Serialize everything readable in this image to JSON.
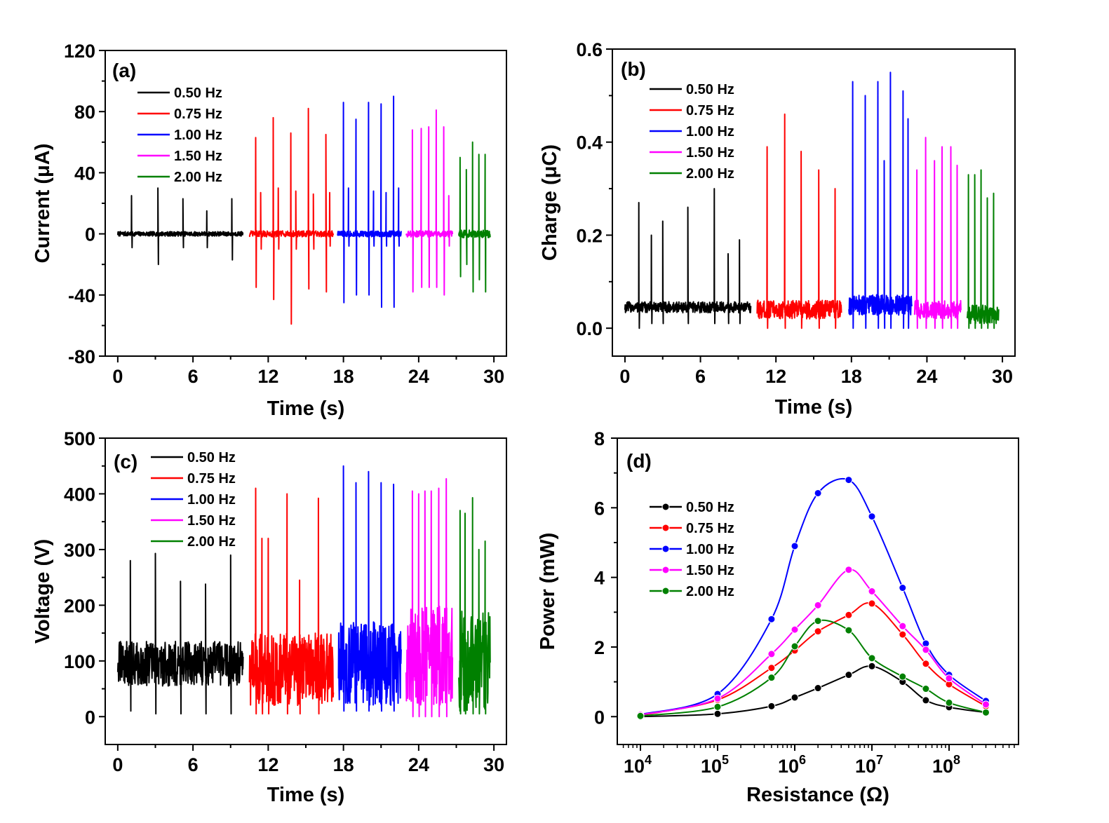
{
  "colors": {
    "0.50 Hz": "#000000",
    "0.75 Hz": "#ff0000",
    "1.00 Hz": "#0000ff",
    "1.50 Hz": "#ff00ff",
    "2.00 Hz": "#008000"
  },
  "chart_data": [
    {
      "type": "line",
      "panel": "(a)",
      "xlabel": "Time (s)",
      "ylabel": "Current (μA)",
      "xlim": [
        -1,
        31
      ],
      "ylim": [
        -80,
        120
      ],
      "xticks": [
        0,
        6,
        12,
        18,
        24,
        30
      ],
      "yticks": [
        -80,
        -40,
        0,
        40,
        80,
        120
      ],
      "legend": [
        "0.50 Hz",
        "0.75 Hz",
        "1.00 Hz",
        "1.50 Hz",
        "2.00 Hz"
      ],
      "series": [
        {
          "name": "0.50 Hz",
          "t_range": [
            0.0,
            10.0
          ],
          "noise": 1.5,
          "baseline": 0,
          "peaks": [
            [
              1.1,
              25,
              -9
            ],
            [
              3.2,
              30,
              -20
            ],
            [
              5.2,
              23,
              -9
            ],
            [
              7.1,
              15,
              -9
            ],
            [
              9.1,
              23,
              -17
            ]
          ]
        },
        {
          "name": "0.75 Hz",
          "t_range": [
            10.5,
            17.2
          ],
          "noise": 2,
          "baseline": 0,
          "peaks": [
            [
              11.0,
              63,
              -35
            ],
            [
              11.4,
              27,
              -10
            ],
            [
              12.4,
              76,
              -43
            ],
            [
              12.8,
              30,
              -10
            ],
            [
              13.8,
              66,
              -59
            ],
            [
              14.2,
              28,
              -10
            ],
            [
              15.2,
              82,
              -36
            ],
            [
              15.6,
              26,
              -10
            ],
            [
              16.6,
              65,
              -38
            ],
            [
              16.9,
              27,
              -8
            ]
          ]
        },
        {
          "name": "1.00 Hz",
          "t_range": [
            17.5,
            22.6
          ],
          "noise": 2,
          "baseline": 0,
          "peaks": [
            [
              18.0,
              86,
              -45
            ],
            [
              18.4,
              30,
              -8
            ],
            [
              19.0,
              75,
              -40
            ],
            [
              20.0,
              86,
              -40
            ],
            [
              20.4,
              28,
              -8
            ],
            [
              21.0,
              85,
              -48
            ],
            [
              21.4,
              27,
              -8
            ],
            [
              22.0,
              90,
              -48
            ],
            [
              22.4,
              30,
              -8
            ]
          ]
        },
        {
          "name": "1.50 Hz",
          "t_range": [
            23.0,
            26.7
          ],
          "noise": 2,
          "baseline": 0,
          "peaks": [
            [
              23.5,
              68,
              -38
            ],
            [
              24.2,
              69,
              -35
            ],
            [
              24.8,
              70,
              -35
            ],
            [
              25.4,
              81,
              -35
            ],
            [
              26.0,
              70,
              -40
            ],
            [
              26.4,
              25,
              -8
            ]
          ]
        },
        {
          "name": "2.00 Hz",
          "t_range": [
            27.2,
            29.7
          ],
          "noise": 2.5,
          "baseline": 0,
          "peaks": [
            [
              27.3,
              50,
              -28
            ],
            [
              27.8,
              42,
              -20
            ],
            [
              28.3,
              60,
              -38
            ],
            [
              28.8,
              52,
              -30
            ],
            [
              29.3,
              52,
              -38
            ]
          ]
        }
      ]
    },
    {
      "type": "line",
      "panel": "(b)",
      "xlabel": "Time (s)",
      "ylabel": "Charge (μC)",
      "xlim": [
        -1,
        31
      ],
      "ylim": [
        -0.06,
        0.6
      ],
      "xticks": [
        0,
        6,
        12,
        18,
        24,
        30
      ],
      "yticks": [
        0.0,
        0.2,
        0.4,
        0.6
      ],
      "legend": [
        "0.50 Hz",
        "0.75 Hz",
        "1.00 Hz",
        "1.50 Hz",
        "2.00 Hz"
      ],
      "series": [
        {
          "name": "0.50 Hz",
          "t_range": [
            0.0,
            10.0
          ],
          "noise": 0.012,
          "baseline": 0.045,
          "peaks": [
            [
              1.1,
              0.27,
              0.0
            ],
            [
              2.1,
              0.2,
              0.01
            ],
            [
              3.0,
              0.23,
              0.01
            ],
            [
              5.0,
              0.26,
              0.01
            ],
            [
              7.1,
              0.3,
              0.01
            ],
            [
              8.2,
              0.16,
              0.01
            ],
            [
              9.1,
              0.19,
              0.01
            ]
          ]
        },
        {
          "name": "0.75 Hz",
          "t_range": [
            10.5,
            17.2
          ],
          "noise": 0.02,
          "baseline": 0.04,
          "peaks": [
            [
              11.3,
              0.39,
              0.0
            ],
            [
              12.7,
              0.46,
              0.0
            ],
            [
              14.0,
              0.38,
              0.0
            ],
            [
              15.4,
              0.34,
              0.0
            ],
            [
              16.7,
              0.3,
              0.0
            ]
          ]
        },
        {
          "name": "1.00 Hz",
          "t_range": [
            17.8,
            22.8
          ],
          "noise": 0.022,
          "baseline": 0.05,
          "peaks": [
            [
              18.1,
              0.53,
              0.0
            ],
            [
              19.1,
              0.5,
              0.0
            ],
            [
              20.1,
              0.53,
              0.0
            ],
            [
              20.6,
              0.36,
              0.0
            ],
            [
              21.1,
              0.55,
              0.0
            ],
            [
              22.1,
              0.51,
              0.0
            ],
            [
              22.5,
              0.45,
              0.0
            ]
          ]
        },
        {
          "name": "1.50 Hz",
          "t_range": [
            23.0,
            26.7
          ],
          "noise": 0.02,
          "baseline": 0.04,
          "peaks": [
            [
              23.2,
              0.34,
              0.0
            ],
            [
              23.9,
              0.41,
              0.0
            ],
            [
              24.6,
              0.36,
              0.0
            ],
            [
              25.2,
              0.39,
              0.0
            ],
            [
              25.9,
              0.39,
              0.0
            ],
            [
              26.4,
              0.35,
              0.0
            ]
          ]
        },
        {
          "name": "2.00 Hz",
          "t_range": [
            27.2,
            29.7
          ],
          "noise": 0.02,
          "baseline": 0.03,
          "peaks": [
            [
              27.3,
              0.33,
              0.0
            ],
            [
              27.8,
              0.33,
              0.0
            ],
            [
              28.3,
              0.34,
              0.0
            ],
            [
              28.8,
              0.28,
              0.0
            ],
            [
              29.3,
              0.29,
              0.0
            ]
          ]
        }
      ]
    },
    {
      "type": "line",
      "panel": "(c)",
      "xlabel": "Time (s)",
      "ylabel": "Voltage (V)",
      "xlim": [
        -1,
        31
      ],
      "ylim": [
        -50,
        500
      ],
      "xticks": [
        0,
        6,
        12,
        18,
        24,
        30
      ],
      "yticks": [
        0,
        100,
        200,
        300,
        400,
        500
      ],
      "legend": [
        "0.50 Hz",
        "0.75 Hz",
        "1.00 Hz",
        "1.50 Hz",
        "2.00 Hz"
      ],
      "series": [
        {
          "name": "0.50 Hz",
          "t_range": [
            0.0,
            10.0
          ],
          "noise": 40,
          "baseline": 95,
          "peaks": [
            [
              1.0,
              280,
              10
            ],
            [
              3.0,
              293,
              5
            ],
            [
              5.0,
              243,
              5
            ],
            [
              7.0,
              238,
              5
            ],
            [
              9.0,
              290,
              5
            ]
          ]
        },
        {
          "name": "0.75 Hz",
          "t_range": [
            10.5,
            17.2
          ],
          "noise": 65,
          "baseline": 85,
          "peaks": [
            [
              11.0,
              410,
              5
            ],
            [
              11.5,
              320,
              5
            ],
            [
              12.0,
              320,
              5
            ],
            [
              13.5,
              400,
              5
            ],
            [
              14.5,
              245,
              5
            ],
            [
              16.0,
              392,
              5
            ]
          ]
        },
        {
          "name": "1.00 Hz",
          "t_range": [
            17.6,
            22.6
          ],
          "noise": 75,
          "baseline": 95,
          "peaks": [
            [
              18.0,
              450,
              10
            ],
            [
              19.0,
              420,
              10
            ],
            [
              20.0,
              440,
              10
            ],
            [
              21.0,
              420,
              10
            ],
            [
              22.0,
              417,
              10
            ]
          ]
        },
        {
          "name": "1.50 Hz",
          "t_range": [
            23.0,
            26.7
          ],
          "noise": 90,
          "baseline": 110,
          "peaks": [
            [
              23.5,
              405,
              0
            ],
            [
              24.0,
              400,
              0
            ],
            [
              24.5,
              405,
              0
            ],
            [
              25.0,
              405,
              0
            ],
            [
              25.6,
              410,
              0
            ],
            [
              26.2,
              427,
              0
            ]
          ]
        },
        {
          "name": "2.00 Hz",
          "t_range": [
            27.2,
            29.7
          ],
          "noise": 90,
          "baseline": 100,
          "peaks": [
            [
              27.3,
              370,
              5
            ],
            [
              27.7,
              365,
              5
            ],
            [
              28.3,
              393,
              5
            ],
            [
              28.8,
              300,
              5
            ],
            [
              29.3,
              315,
              5
            ]
          ]
        }
      ]
    },
    {
      "type": "line",
      "panel": "(d)",
      "xlabel": "Resistance (Ω)",
      "ylabel": "Power (mW)",
      "xscale": "log",
      "xlim_log10": [
        3.7,
        8.9
      ],
      "ylim": [
        -0.8,
        8
      ],
      "xticks_log10": [
        4,
        5,
        6,
        7,
        8
      ],
      "xtick_labels": [
        [
          "10",
          "4"
        ],
        [
          "10",
          "5"
        ],
        [
          "10",
          "6"
        ],
        [
          "10",
          "7"
        ],
        [
          "10",
          "8"
        ]
      ],
      "yticks": [
        0,
        2,
        4,
        6,
        8
      ],
      "legend": [
        "0.50 Hz",
        "0.75 Hz",
        "1.00 Hz",
        "1.50 Hz",
        "2.00 Hz"
      ],
      "x": [
        10000,
        100000,
        500000,
        1000000,
        2000000,
        5000000,
        10000000,
        25000000,
        50000000,
        100000000,
        300000000
      ],
      "series": [
        {
          "name": "0.50 Hz",
          "values": [
            0.0,
            0.08,
            0.3,
            0.55,
            0.82,
            1.2,
            1.45,
            1.0,
            0.47,
            0.27,
            0.12
          ]
        },
        {
          "name": "0.75 Hz",
          "values": [
            0.04,
            0.48,
            1.4,
            1.9,
            2.45,
            2.92,
            3.25,
            2.36,
            1.52,
            0.93,
            0.3
          ]
        },
        {
          "name": "1.00 Hz",
          "values": [
            0.06,
            0.65,
            2.8,
            4.9,
            6.42,
            6.8,
            5.75,
            3.7,
            2.1,
            1.2,
            0.45
          ]
        },
        {
          "name": "1.50 Hz",
          "values": [
            0.05,
            0.52,
            1.8,
            2.5,
            3.2,
            4.22,
            3.6,
            2.6,
            1.92,
            1.1,
            0.35
          ]
        },
        {
          "name": "2.00 Hz",
          "values": [
            0.02,
            0.28,
            1.12,
            2.02,
            2.75,
            2.48,
            1.68,
            1.15,
            0.8,
            0.4,
            0.12
          ]
        }
      ]
    }
  ]
}
